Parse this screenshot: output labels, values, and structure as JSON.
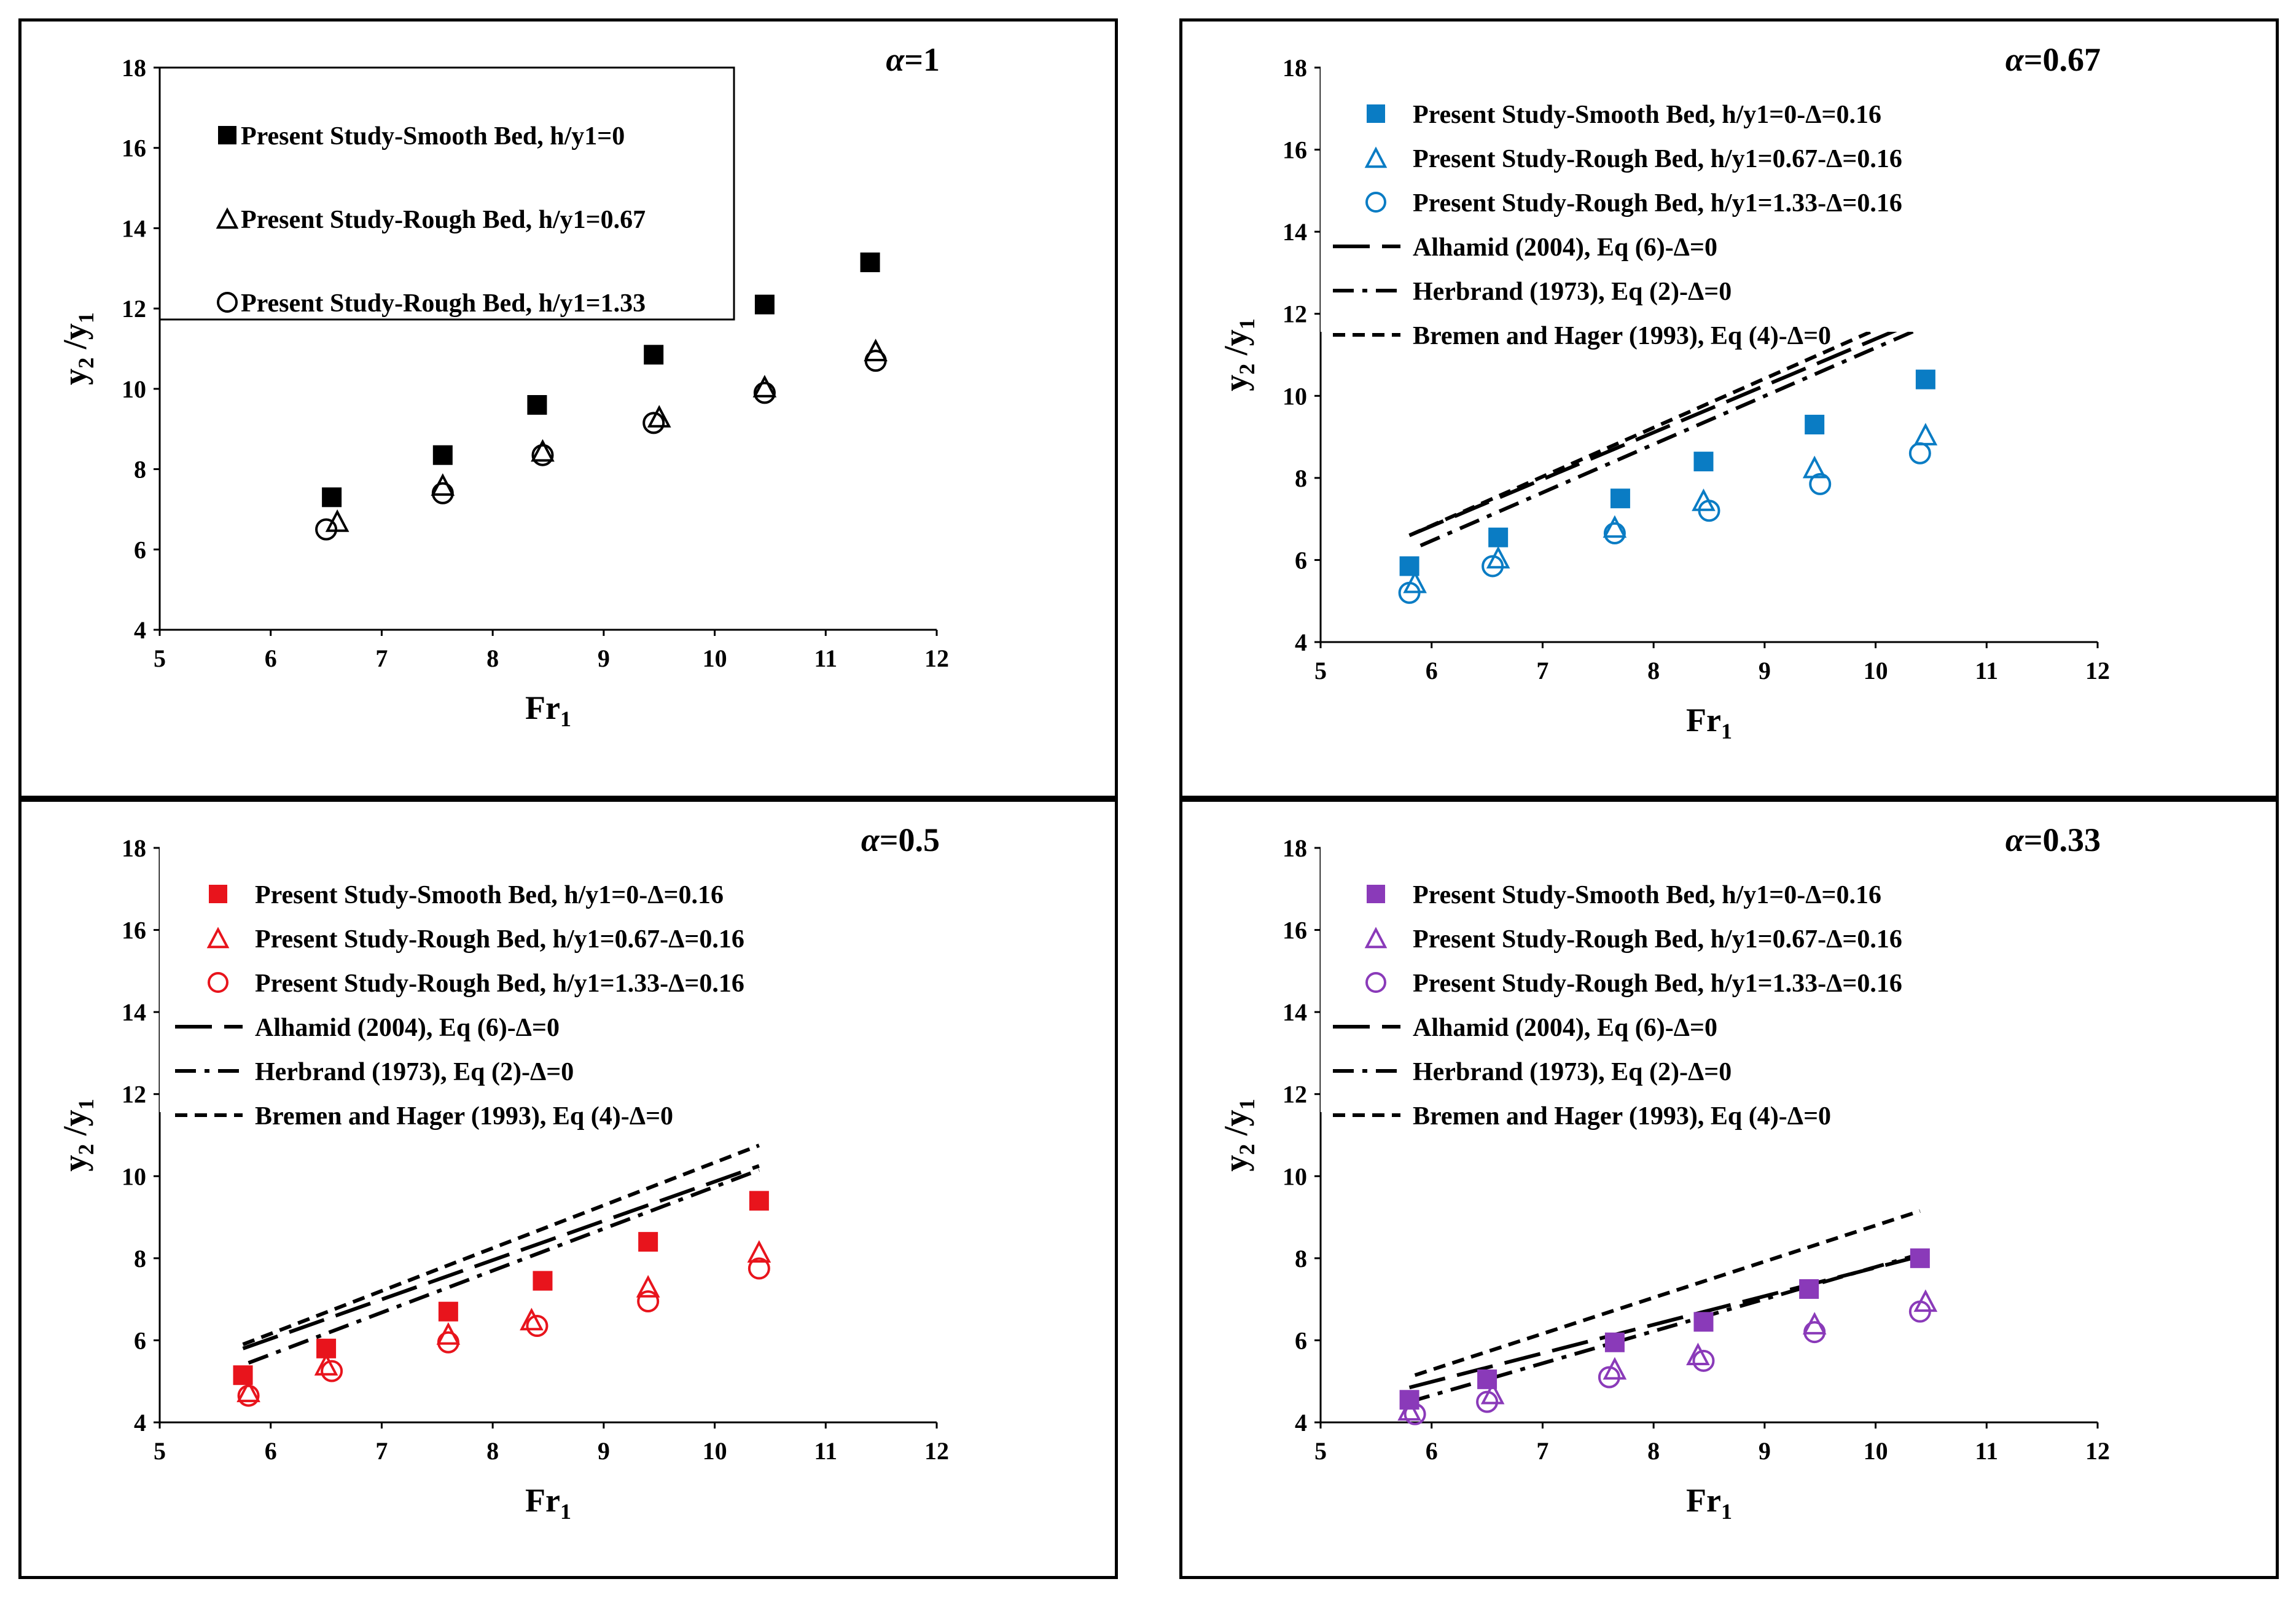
{
  "chart_data": [
    {
      "type": "scatter",
      "annotation": "α=1",
      "xlabel": "Fr1",
      "ylabel": "y2 /y1",
      "xlim": [
        5,
        12
      ],
      "ylim": [
        4,
        18
      ],
      "xticks": [
        5,
        6,
        7,
        8,
        9,
        10,
        11,
        12
      ],
      "yticks": [
        4,
        6,
        8,
        10,
        12,
        14,
        16,
        18
      ],
      "color": "#000000",
      "legend_position": "top-left",
      "series": [
        {
          "name": "Present Study-Smooth Bed, h/y1=0",
          "marker": "square",
          "x": [
            6.55,
            7.55,
            8.4,
            9.45,
            10.45,
            11.4
          ],
          "y": [
            7.3,
            8.35,
            9.6,
            10.85,
            12.1,
            13.15
          ]
        },
        {
          "name": "Present Study-Rough Bed, h/y1=0.67",
          "marker": "triangle",
          "x": [
            6.6,
            7.55,
            8.45,
            9.5,
            10.45,
            11.45
          ],
          "y": [
            6.7,
            7.6,
            8.45,
            9.3,
            10.05,
            10.95
          ]
        },
        {
          "name": "Present Study-Rough Bed, h/y1=1.33",
          "marker": "circle",
          "x": [
            6.5,
            7.55,
            8.45,
            9.45,
            10.45,
            11.45
          ],
          "y": [
            6.5,
            7.4,
            8.35,
            9.15,
            9.9,
            10.7
          ]
        }
      ]
    },
    {
      "type": "scatter",
      "annotation": "α=0.67",
      "xlabel": "Fr1",
      "ylabel": "y2 /y1",
      "xlim": [
        5,
        12
      ],
      "ylim": [
        4,
        18
      ],
      "xticks": [
        5,
        6,
        7,
        8,
        9,
        10,
        11,
        12
      ],
      "yticks": [
        4,
        6,
        8,
        10,
        12,
        14,
        16,
        18
      ],
      "color": "#0a7cc4",
      "legend_position": "top-left",
      "series": [
        {
          "name": "Present Study-Smooth Bed, h/y1=0-Δ=0.16",
          "marker": "square",
          "x": [
            5.8,
            6.6,
            7.7,
            8.45,
            9.45,
            10.45
          ],
          "y": [
            5.85,
            6.55,
            7.5,
            8.4,
            9.3,
            10.4
          ]
        },
        {
          "name": "Present Study-Rough Bed, h/y1=0.67-Δ=0.16",
          "marker": "triangle",
          "x": [
            5.85,
            6.6,
            7.65,
            8.45,
            9.45,
            10.45
          ],
          "y": [
            5.45,
            6.05,
            6.8,
            7.45,
            8.25,
            9.05
          ]
        },
        {
          "name": "Present Study-Rough Bed, h/y1=1.33-Δ=0.16",
          "marker": "circle",
          "x": [
            5.8,
            6.55,
            7.65,
            8.5,
            9.5,
            10.4
          ],
          "y": [
            5.2,
            5.85,
            6.65,
            7.2,
            7.85,
            8.6
          ]
        },
        {
          "name": "Alhamid (2004), Eq (6)-Δ=0",
          "style": "long-dash",
          "x": [
            5.8,
            10.45
          ],
          "y": [
            6.6,
            11.9
          ]
        },
        {
          "name": "Herbrand (1973), Eq (2)-Δ=0",
          "style": "dash-dot",
          "x": [
            5.9,
            10.45
          ],
          "y": [
            6.35,
            11.7
          ]
        },
        {
          "name": "Bremen and Hager (1993), Eq (4)-Δ=0",
          "style": "short-dash",
          "x": [
            5.8,
            10.45
          ],
          "y": [
            6.6,
            12.15
          ]
        }
      ]
    },
    {
      "type": "scatter",
      "annotation": "α=0.5",
      "xlabel": "Fr1",
      "ylabel": "y2 /y1",
      "xlim": [
        5,
        12
      ],
      "ylim": [
        4,
        18
      ],
      "xticks": [
        5,
        6,
        7,
        8,
        9,
        10,
        11,
        12
      ],
      "yticks": [
        4,
        6,
        8,
        10,
        12,
        14,
        16,
        18
      ],
      "color": "#e8141c",
      "legend_position": "top-left",
      "series": [
        {
          "name": "Present Study-Smooth Bed, h/y1=0-Δ=0.16",
          "marker": "square",
          "x": [
            5.75,
            6.5,
            7.6,
            8.45,
            9.4,
            10.4
          ],
          "y": [
            5.15,
            5.8,
            6.7,
            7.45,
            8.4,
            9.4
          ]
        },
        {
          "name": "Present Study-Rough Bed, h/y1=0.67-Δ=0.16",
          "marker": "triangle",
          "x": [
            5.8,
            6.5,
            7.6,
            8.35,
            9.4,
            10.4
          ],
          "y": [
            4.75,
            5.4,
            6.15,
            6.5,
            7.3,
            8.15
          ]
        },
        {
          "name": "Present Study-Rough Bed, h/y1=1.33-Δ=0.16",
          "marker": "circle",
          "x": [
            5.8,
            6.55,
            7.6,
            8.4,
            9.4,
            10.4
          ],
          "y": [
            4.65,
            5.25,
            5.95,
            6.35,
            6.95,
            7.75
          ]
        },
        {
          "name": "Alhamid (2004), Eq (6)-Δ=0",
          "style": "long-dash",
          "x": [
            5.75,
            10.4
          ],
          "y": [
            5.8,
            10.25
          ]
        },
        {
          "name": "Herbrand (1973), Eq (2)-Δ=0",
          "style": "dash-dot",
          "x": [
            5.8,
            10.4
          ],
          "y": [
            5.45,
            10.15
          ]
        },
        {
          "name": "Bremen and Hager (1993), Eq (4)-Δ=0",
          "style": "short-dash",
          "x": [
            5.75,
            10.4
          ],
          "y": [
            5.9,
            10.75
          ]
        }
      ]
    },
    {
      "type": "scatter",
      "annotation": "α=0.33",
      "xlabel": "Fr1",
      "ylabel": "y2 /y1",
      "xlim": [
        5,
        12
      ],
      "ylim": [
        4,
        18
      ],
      "xticks": [
        5,
        6,
        7,
        8,
        9,
        10,
        11,
        12
      ],
      "yticks": [
        4,
        6,
        8,
        10,
        12,
        14,
        16,
        18
      ],
      "color": "#8a3ab9",
      "legend_position": "top-left",
      "series": [
        {
          "name": "Present Study-Smooth Bed, h/y1=0-Δ=0.16",
          "marker": "square",
          "x": [
            5.8,
            6.5,
            7.65,
            8.45,
            9.4,
            10.4
          ],
          "y": [
            4.55,
            5.05,
            5.95,
            6.45,
            7.25,
            8.0
          ]
        },
        {
          "name": "Present Study-Rough Bed, h/y1=0.67-Δ=0.16",
          "marker": "triangle",
          "x": [
            5.8,
            6.55,
            7.65,
            8.4,
            9.45,
            10.45
          ],
          "y": [
            4.3,
            4.7,
            5.3,
            5.65,
            6.4,
            6.95
          ]
        },
        {
          "name": "Present Study-Rough Bed, h/y1=1.33-Δ=0.16",
          "marker": "circle",
          "x": [
            5.85,
            6.5,
            7.6,
            8.45,
            9.45,
            10.4
          ],
          "y": [
            4.2,
            4.5,
            5.1,
            5.5,
            6.2,
            6.7
          ]
        },
        {
          "name": "Alhamid (2004), Eq (6)-Δ=0",
          "style": "long-dash",
          "x": [
            5.8,
            10.4
          ],
          "y": [
            4.85,
            8.05
          ]
        },
        {
          "name": "Herbrand (1973), Eq (2)-Δ=0",
          "style": "dash-dot",
          "x": [
            5.8,
            10.4
          ],
          "y": [
            4.5,
            8.1
          ]
        },
        {
          "name": "Bremen and Hager (1993), Eq (4)-Δ=0",
          "style": "short-dash",
          "x": [
            5.85,
            10.4
          ],
          "y": [
            5.15,
            9.15
          ]
        }
      ]
    }
  ]
}
